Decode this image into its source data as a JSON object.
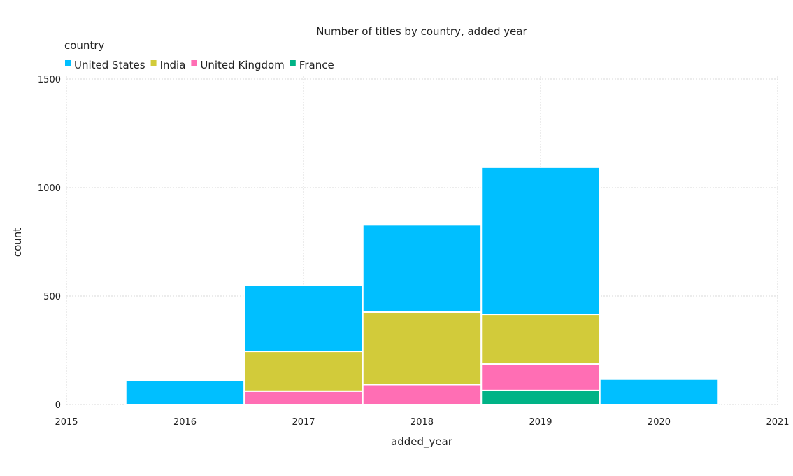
{
  "chart_data": {
    "type": "bar",
    "stacked": true,
    "title": "Number of titles by country, added year",
    "xlabel": "added_year",
    "ylabel": "count",
    "xlim": [
      2015,
      2021
    ],
    "ylim": [
      0,
      1500
    ],
    "xticks": [
      2015,
      2016,
      2017,
      2018,
      2019,
      2020,
      2021
    ],
    "yticks": [
      0,
      500,
      1000,
      1500
    ],
    "grid": true,
    "legend": {
      "title": "country",
      "placement": "top-left"
    },
    "categories": [
      2016,
      2017,
      2018,
      2019,
      2020
    ],
    "series": [
      {
        "name": "France",
        "color": "#00b386",
        "values": [
          0,
          0,
          0,
          65,
          0
        ]
      },
      {
        "name": "United Kingdom",
        "color": "#ff6eb4",
        "values": [
          0,
          62,
          92,
          122,
          0
        ]
      },
      {
        "name": "India",
        "color": "#d2cb3a",
        "values": [
          0,
          183,
          334,
          229,
          0
        ]
      },
      {
        "name": "United States",
        "color": "#00bfff",
        "values": [
          110,
          305,
          402,
          678,
          117
        ]
      }
    ],
    "legend_order": [
      "United States",
      "India",
      "United Kingdom",
      "France"
    ]
  }
}
